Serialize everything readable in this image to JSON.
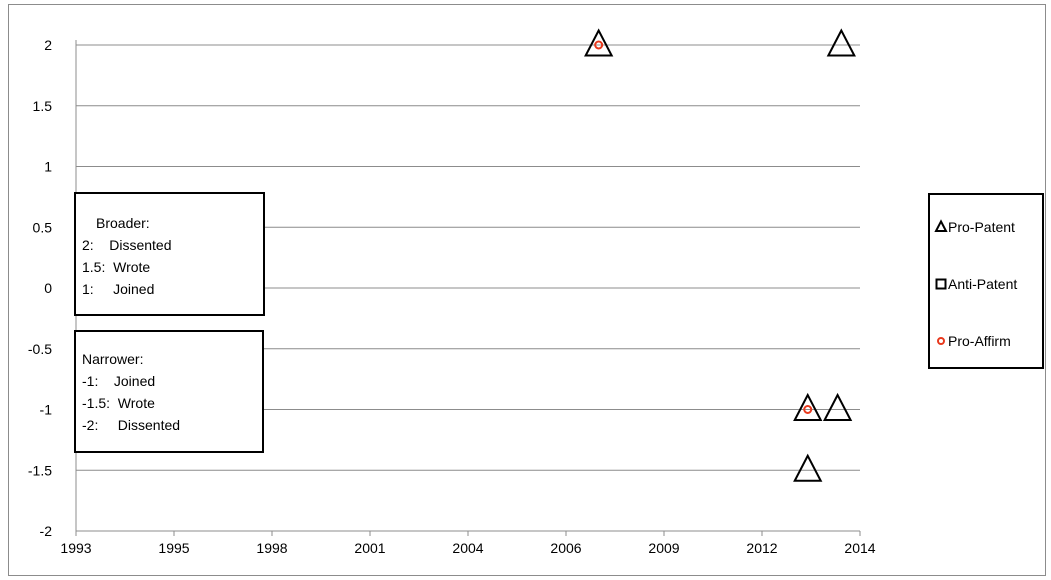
{
  "chart_data": {
    "type": "scatter",
    "title": "",
    "xlabel": "",
    "ylabel": "",
    "xlim": [
      1993,
      2014
    ],
    "ylim": [
      -2,
      2
    ],
    "x_ticks": [
      "1993",
      "1995",
      "1998",
      "2001",
      "2004",
      "2006",
      "2009",
      "2012",
      "2014"
    ],
    "y_ticks": [
      "2",
      "1.5",
      "1",
      "0.5",
      "0",
      "-0.5",
      "-1",
      "-1.5",
      "-2"
    ],
    "grid": "horizontal",
    "legend_position": "right",
    "series": [
      {
        "name": "Pro-Patent",
        "marker": "triangle",
        "color": "#000000",
        "points": [
          [
            2007.0,
            2
          ],
          [
            2012.6,
            -1
          ],
          [
            2013.4,
            -1
          ],
          [
            2012.6,
            -1.5
          ],
          [
            2013.5,
            2
          ]
        ]
      },
      {
        "name": "Anti-Patent",
        "marker": "square",
        "color": "#000000",
        "points": []
      },
      {
        "name": "Pro-Affirm",
        "marker": "circle",
        "color": "#e8391d",
        "points": [
          [
            2007.0,
            2
          ],
          [
            2012.6,
            -1
          ]
        ]
      }
    ],
    "annotations": [
      {
        "id": "broader",
        "lines": [
          "Broader:",
          "2:    Dissented",
          "1.5:  Wrote",
          "1:     Joined"
        ]
      },
      {
        "id": "narrower",
        "lines": [
          "Narrower:",
          "-1:    Joined",
          "-1.5:  Wrote",
          "-2:     Dissented"
        ]
      }
    ]
  }
}
